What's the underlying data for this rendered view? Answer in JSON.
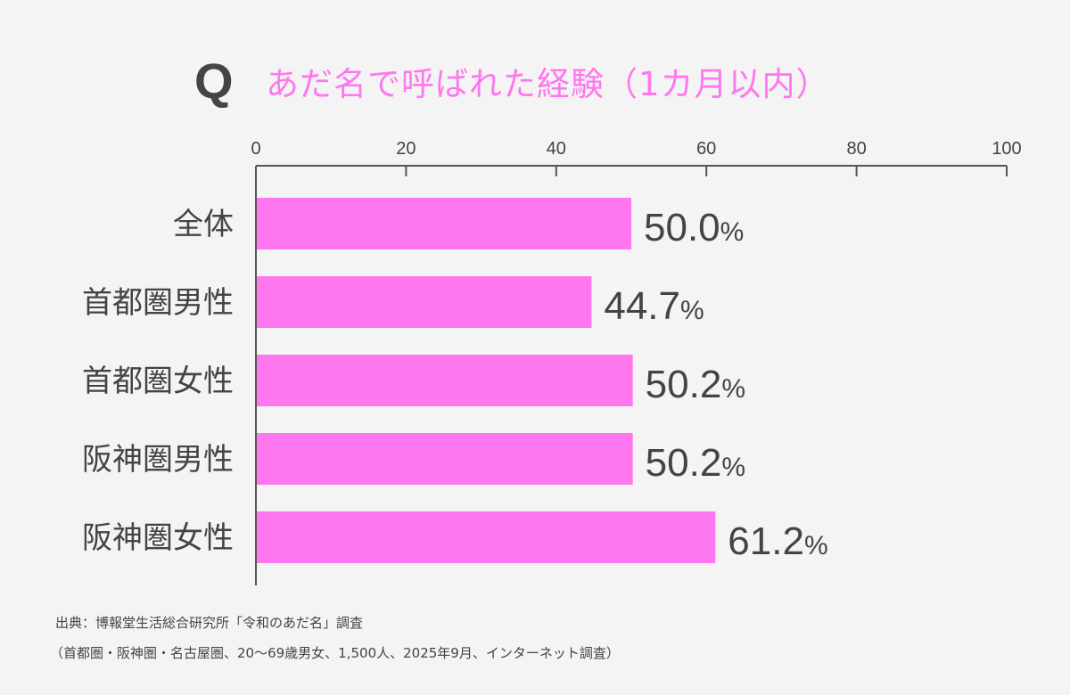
{
  "header": {
    "q_mark": "Q",
    "title": "あだ名で呼ばれた経験（1カ月以内）"
  },
  "chart_data": {
    "type": "bar",
    "orientation": "horizontal",
    "title": "あだ名で呼ばれた経験（1カ月以内）",
    "categories": [
      "全体",
      "首都圏男性",
      "首都圏女性",
      "阪神圏男性",
      "阪神圏女性"
    ],
    "values": [
      50.0,
      44.7,
      50.2,
      50.2,
      61.2
    ],
    "value_labels": [
      "50.0",
      "44.7",
      "50.2",
      "50.2",
      "61.2"
    ],
    "unit": "%",
    "xlim": [
      0,
      100
    ],
    "xticks": [
      0,
      20,
      40,
      60,
      80,
      100
    ],
    "xaxis_position": "top",
    "bar_color": "#ff77ee",
    "grid": false
  },
  "footer": {
    "source": "出典：博報堂生活総合研究所「令和のあだ名」調査",
    "note": "（首都圏・阪神圏・名古屋圏、20～69歳男女、1,500人、2025年9月、インターネット調査）"
  }
}
